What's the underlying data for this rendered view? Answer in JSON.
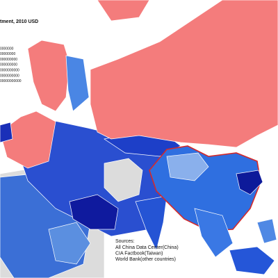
{
  "title": "tment, 2010 USD",
  "legend": [
    "0000000",
    "00000000",
    "000000000",
    "000000000",
    "0000000000",
    "0000000000",
    "00000000000"
  ],
  "sources": {
    "heading": "Sources:",
    "lines": [
      "All China Data Center(China)",
      "CIA Factbook(Taiwan)",
      "World Bank(other countries)"
    ]
  }
}
